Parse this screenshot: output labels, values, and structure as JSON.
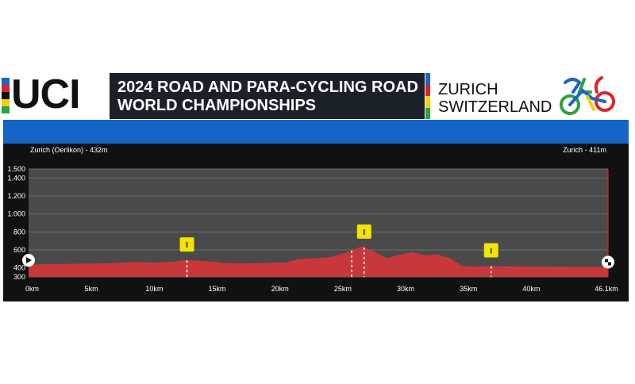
{
  "header": {
    "logo_text": "UCI",
    "title_line1": "2024 ROAD AND PARA-CYCLING ROAD",
    "title_line2": "WORLD CHAMPIONSHIPS",
    "location_line1": "ZURICH",
    "location_line2": "SWITZERLAND",
    "event_logo": "zurich-2024-cyclist-logo"
  },
  "colors": {
    "profile_fill": "#c8373a",
    "chart_bg": "#111111",
    "plot_bg": "#4a4a4a",
    "band_blue": "#1565c6",
    "marker_yellow": "#f4e400"
  },
  "chart_data": {
    "type": "area",
    "start_label": "Zurich (Oerlikon) - 432m",
    "end_label": "Zurich - 411m",
    "x_unit": "km",
    "xlim": [
      0,
      46.1
    ],
    "ylim": [
      300,
      1500
    ],
    "x_ticks": [
      "0km",
      "5km",
      "10km",
      "15km",
      "20km",
      "25km",
      "30km",
      "35km",
      "40km",
      "46.1km"
    ],
    "x_tick_values": [
      0,
      5,
      10,
      15,
      20,
      25,
      30,
      35,
      40,
      46.1
    ],
    "y_ticks": [
      "300",
      "400",
      "600",
      "800",
      "1.000",
      "1.200",
      "1.400",
      "1.500"
    ],
    "y_tick_values": [
      300,
      400,
      600,
      800,
      1000,
      1200,
      1400,
      1500
    ],
    "grid": true,
    "profile": [
      [
        0,
        432
      ],
      [
        1,
        440
      ],
      [
        3,
        445
      ],
      [
        5,
        447
      ],
      [
        7,
        455
      ],
      [
        8.5,
        465
      ],
      [
        10,
        460
      ],
      [
        11.5,
        470
      ],
      [
        12.5,
        485
      ],
      [
        13.5,
        480
      ],
      [
        14.5,
        470
      ],
      [
        15.5,
        455
      ],
      [
        17,
        450
      ],
      [
        19,
        455
      ],
      [
        20.5,
        462
      ],
      [
        21.5,
        500
      ],
      [
        22.5,
        505
      ],
      [
        24,
        520
      ],
      [
        25.5,
        580
      ],
      [
        26.5,
        640
      ],
      [
        27.5,
        580
      ],
      [
        28.5,
        510
      ],
      [
        29.5,
        545
      ],
      [
        30.5,
        575
      ],
      [
        31.5,
        540
      ],
      [
        32.5,
        550
      ],
      [
        33.5,
        510
      ],
      [
        34.5,
        420
      ],
      [
        35.5,
        415
      ],
      [
        37,
        420
      ],
      [
        40,
        415
      ],
      [
        43,
        412
      ],
      [
        46.1,
        411
      ]
    ],
    "markers": [
      {
        "label": "I",
        "km": 12.6
      },
      {
        "label": "I",
        "km": 26.7
      },
      {
        "label": "I",
        "km": 36.8
      }
    ],
    "sprint_lines_km": [
      12.6,
      25.7,
      26.7,
      36.8
    ]
  }
}
